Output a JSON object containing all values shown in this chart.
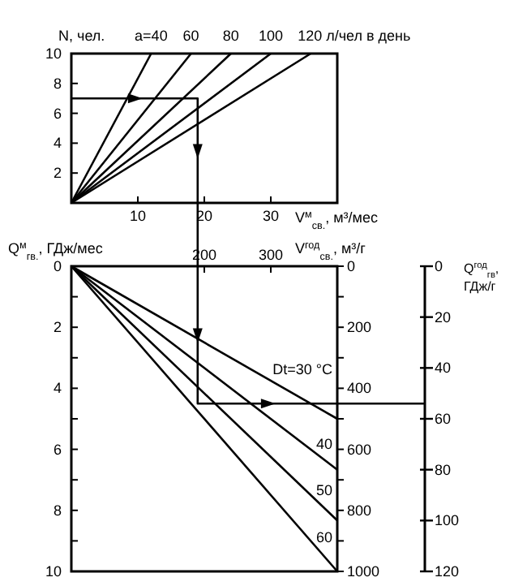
{
  "chart_data": [
    {
      "type": "line",
      "xlabel": "V$^{м}$$_{св.}$, м³/мес",
      "ylabel": "N, чел.",
      "xlim": [
        0,
        40
      ],
      "xticks": [
        10,
        20,
        30
      ],
      "ylim": [
        0,
        10
      ],
      "yticks": [
        2,
        4,
        6,
        8,
        10
      ],
      "marker": "none",
      "line_style": "solid",
      "series": [
        {
          "name": "a=40",
          "color": "#000000",
          "x": [
            0,
            12
          ],
          "values": [
            0,
            10
          ]
        },
        {
          "name": "60",
          "color": "#000000",
          "x": [
            0,
            18
          ],
          "values": [
            0,
            10
          ]
        },
        {
          "name": "80",
          "color": "#000000",
          "x": [
            0,
            24
          ],
          "values": [
            0,
            10
          ]
        },
        {
          "name": "100",
          "color": "#000000",
          "x": [
            0,
            30
          ],
          "values": [
            0,
            10
          ]
        },
        {
          "name": "120 л/чел в день",
          "color": "#000000",
          "x": [
            0,
            36
          ],
          "values": [
            0,
            10
          ]
        },
        {
          "color": "#000000",
          "x": [
            0,
            19,
            19
          ],
          "values": [
            7,
            7,
            0
          ]
        }
      ]
    },
    {
      "type": "line",
      "xlabel": "V$^{год}$$_{св.}$, м³/г",
      "ylabel": "Q$^{м}$$_{гв.}$, ГДж/мес",
      "y3label": "Q$^{год}$$_{гв}$, ГДж/г",
      "xlim": [
        0,
        400
      ],
      "xticks": [
        200,
        300
      ],
      "ylim": [
        10,
        0
      ],
      "yticks": [
        0,
        {
          "value": 1,
          "label": null
        },
        2,
        {
          "value": 3,
          "label": null
        },
        4,
        {
          "value": 5,
          "label": null
        },
        6,
        {
          "value": 7,
          "label": null
        },
        8,
        {
          "value": 9,
          "label": null
        },
        10
      ],
      "y2lim": [
        1000,
        0
      ],
      "y2ticks": [
        0,
        {
          "value": 100,
          "label": null
        },
        200,
        {
          "value": 300,
          "label": null
        },
        400,
        {
          "value": 500,
          "label": null
        },
        600,
        {
          "value": 700,
          "label": null
        },
        800,
        {
          "value": 900,
          "label": null
        },
        1000
      ],
      "y3lim": [
        120,
        0
      ],
      "y3ticks": [
        0,
        20,
        40,
        60,
        80,
        100,
        120
      ],
      "marker": "none",
      "line_style": "solid",
      "series": [
        {
          "name": "Dt=30 °C",
          "color": "#000000",
          "x": [
            0,
            400
          ],
          "values": [
            0,
            5
          ]
        },
        {
          "name": "40",
          "color": "#000000",
          "x": [
            0,
            400
          ],
          "values": [
            0,
            6.67
          ]
        },
        {
          "name": "50",
          "color": "#000000",
          "x": [
            0,
            400
          ],
          "values": [
            0,
            8.33
          ]
        },
        {
          "name": "60",
          "color": "#000000",
          "x": [
            0,
            400
          ],
          "values": [
            0,
            10
          ]
        },
        {
          "color": "#000000",
          "x": [
            190,
            190,
            400
          ],
          "values": [
            0,
            4.5,
            4.5
          ]
        }
      ]
    }
  ]
}
